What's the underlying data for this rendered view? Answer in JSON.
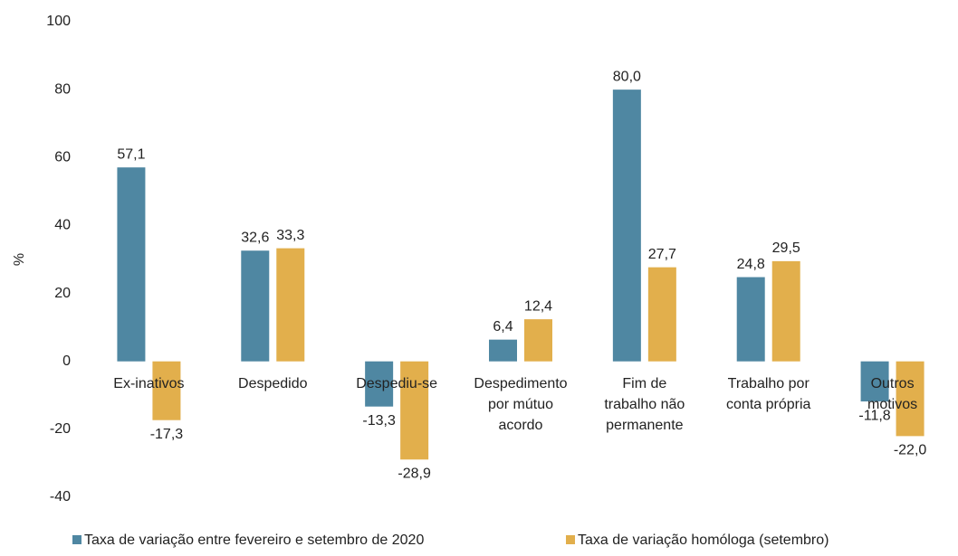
{
  "chart_data": {
    "type": "bar",
    "y_label": "%",
    "categories": [
      "Ex-inativos",
      "Despedido",
      "Despediu-se",
      "Despedimento\npor mútuo\nacordo",
      "Fim de\ntrabalho não\npermanente",
      "Trabalho por\nconta própria",
      "Outros\nmotivos"
    ],
    "series": [
      {
        "name": "Taxa de variação entre fevereiro e setembro de 2020",
        "color": "#4f87a2",
        "values": [
          57.1,
          32.6,
          -13.3,
          6.4,
          80.0,
          24.8,
          -11.8
        ],
        "value_labels": [
          "57,1",
          "32,6",
          "-13,3",
          "6,4",
          "80,0",
          "24,8",
          "-11,8"
        ]
      },
      {
        "name": "Taxa de variação homóloga (setembro)",
        "color": "#e2af4c",
        "values": [
          -17.3,
          33.3,
          -28.9,
          12.4,
          27.7,
          29.5,
          -22.0
        ],
        "value_labels": [
          "-17,3",
          "33,3",
          "-28,9",
          "12,4",
          "27,7",
          "29,5",
          "-22,0"
        ]
      }
    ],
    "ylim": [
      -40,
      100
    ],
    "yticks": [
      -40,
      -20,
      0,
      20,
      40,
      60,
      80,
      100
    ],
    "grid": false
  }
}
